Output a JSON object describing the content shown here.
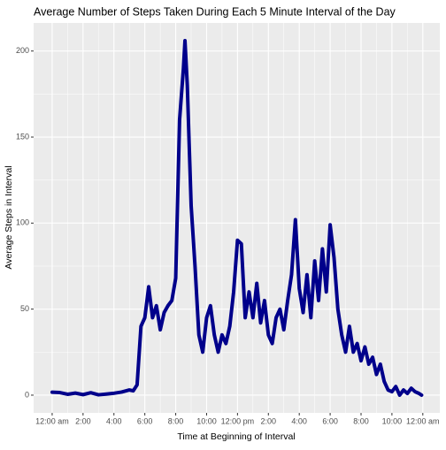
{
  "chart_data": {
    "type": "line",
    "title": "Average Number of Steps Taken During Each 5 Minute Interval of the Day",
    "x_label": "Time at Beginning of Interval",
    "y_label": "Average Steps in Interval",
    "x": [
      0,
      0.5,
      1,
      1.5,
      2,
      2.5,
      3,
      3.5,
      4,
      4.5,
      5,
      5.25,
      5.5,
      5.75,
      6,
      6.25,
      6.5,
      6.75,
      7,
      7.25,
      7.5,
      7.75,
      8,
      8.25,
      8.5,
      8.6,
      8.75,
      9,
      9.25,
      9.5,
      9.75,
      10,
      10.25,
      10.5,
      10.75,
      11,
      11.25,
      11.5,
      11.75,
      12,
      12.25,
      12.5,
      12.75,
      13,
      13.25,
      13.5,
      13.75,
      14,
      14.25,
      14.5,
      14.75,
      15,
      15.25,
      15.5,
      15.75,
      16,
      16.25,
      16.5,
      16.75,
      17,
      17.25,
      17.5,
      17.75,
      18,
      18.25,
      18.5,
      18.75,
      19,
      19.25,
      19.5,
      19.75,
      20,
      20.25,
      20.5,
      20.75,
      21,
      21.25,
      21.5,
      21.75,
      22,
      22.25,
      22.5,
      22.75,
      23,
      23.25,
      23.5,
      23.75,
      23.92
    ],
    "series": [
      {
        "name": "steps",
        "color": "#00008b",
        "values": [
          1.7,
          1.5,
          0.5,
          1.2,
          0.3,
          1.4,
          0.2,
          0.6,
          1.1,
          1.8,
          3,
          2.5,
          6,
          40,
          45,
          63,
          45,
          52,
          38,
          48,
          52,
          55,
          68,
          160,
          190,
          206,
          180,
          110,
          75,
          35,
          25,
          45,
          52,
          35,
          25,
          35,
          30,
          40,
          60,
          90,
          88,
          45,
          60,
          45,
          65,
          42,
          55,
          35,
          30,
          45,
          50,
          38,
          55,
          70,
          102,
          62,
          48,
          70,
          45,
          78,
          55,
          85,
          60,
          99,
          80,
          50,
          35,
          25,
          40,
          25,
          30,
          20,
          28,
          18,
          22,
          12,
          18,
          8,
          3,
          2,
          5,
          0,
          3,
          1,
          4,
          2,
          1,
          0
        ]
      }
    ],
    "xlim": [
      -1.2,
      25.1
    ],
    "ylim": [
      -10.3,
      216.3
    ],
    "xticks": [
      {
        "value": 0,
        "label": "12:00 am"
      },
      {
        "value": 2,
        "label": "2:00"
      },
      {
        "value": 4,
        "label": "4:00"
      },
      {
        "value": 6,
        "label": "6:00"
      },
      {
        "value": 8,
        "label": "8:00"
      },
      {
        "value": 10,
        "label": "10:00"
      },
      {
        "value": 12,
        "label": "12:00 pm"
      },
      {
        "value": 14,
        "label": "2:00"
      },
      {
        "value": 16,
        "label": "4:00"
      },
      {
        "value": 18,
        "label": "6:00"
      },
      {
        "value": 20,
        "label": "8:00"
      },
      {
        "value": 22,
        "label": "10:00"
      },
      {
        "value": 24,
        "label": "12:00 am"
      }
    ],
    "yticks": [
      0,
      50,
      100,
      150,
      200
    ],
    "grid": true
  }
}
